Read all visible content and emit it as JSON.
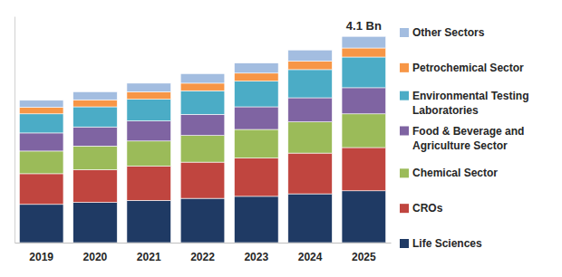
{
  "chart_data": {
    "type": "bar",
    "stacked": true,
    "legend": "right",
    "grid": false,
    "tick_labels": "x",
    "categories": [
      "2019",
      "2020",
      "2021",
      "2022",
      "2023",
      "2024",
      "2025"
    ],
    "ylim": [
      0,
      4.5
    ],
    "series": [
      {
        "name": "Life Sciences",
        "color": "#1f3a64",
        "values": [
          0.76,
          0.8,
          0.84,
          0.88,
          0.92,
          0.97,
          1.03
        ]
      },
      {
        "name": "CROs",
        "color": "#c0453f",
        "values": [
          0.61,
          0.65,
          0.68,
          0.72,
          0.76,
          0.81,
          0.86
        ]
      },
      {
        "name": "Chemical Sector",
        "color": "#9bbb59",
        "values": [
          0.45,
          0.47,
          0.5,
          0.53,
          0.57,
          0.62,
          0.67
        ]
      },
      {
        "name": "Food & Beverage and Agriculture Sector",
        "color": "#7f64a2",
        "values": [
          0.36,
          0.38,
          0.4,
          0.42,
          0.45,
          0.48,
          0.52
        ]
      },
      {
        "name": "Environmental Testing Laboratories",
        "color": "#4bacc6",
        "values": [
          0.38,
          0.4,
          0.43,
          0.47,
          0.51,
          0.56,
          0.61
        ]
      },
      {
        "name": "Petrochemical Sector",
        "color": "#f79646",
        "values": [
          0.13,
          0.14,
          0.15,
          0.15,
          0.16,
          0.17,
          0.18
        ]
      },
      {
        "name": "Other Sectors",
        "color": "#a3bde0",
        "values": [
          0.14,
          0.16,
          0.17,
          0.19,
          0.2,
          0.22,
          0.23
        ]
      }
    ],
    "annotations": [
      {
        "text": "4.1 Bn",
        "x": "2025",
        "y": 4.1
      }
    ]
  }
}
